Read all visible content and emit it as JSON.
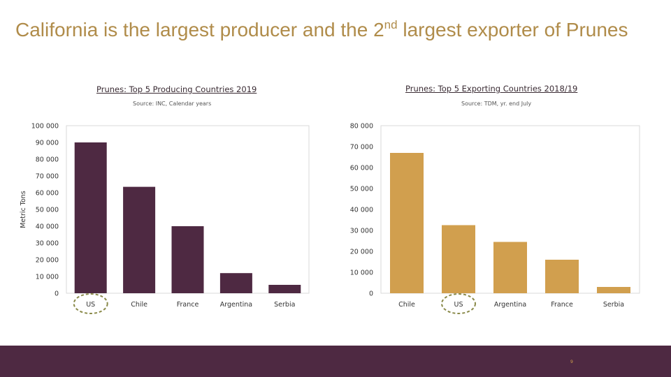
{
  "slide": {
    "title_main": "California is the largest producer and the 2",
    "title_sup": "nd",
    "title_rest": " largest exporter of Prunes",
    "page_number": "9"
  },
  "colors": {
    "title": "#B08C4A",
    "producing_bars": "#4E2942",
    "exporting_bars": "#D19F4E",
    "highlight_circle": "#8A8A4A",
    "footer": "#4E2942"
  },
  "chart_data": [
    {
      "type": "bar",
      "title": "Prunes: Top 5 Producing Countries 2019",
      "subtitle": "Source: INC, Calendar years",
      "categories": [
        "US",
        "Chile",
        "France",
        "Argentina",
        "Serbia"
      ],
      "values": [
        90000,
        63500,
        40000,
        12000,
        5000
      ],
      "ylabel": "Metric Tons",
      "xlabel": "",
      "ylim": [
        0,
        100000
      ],
      "yticks": [
        0,
        10000,
        20000,
        30000,
        40000,
        50000,
        60000,
        70000,
        80000,
        90000,
        100000
      ],
      "ytick_labels": [
        "0",
        "10 000",
        "20 000",
        "30 000",
        "40 000",
        "50 000",
        "60 000",
        "70 000",
        "80 000",
        "90 000",
        "100 000"
      ],
      "grid": false,
      "highlight_category": "US"
    },
    {
      "type": "bar",
      "title": "Prunes: Top 5 Exporting Countries 2018/19",
      "subtitle": "Source: TDM, yr. end July",
      "categories": [
        "Chile",
        "US",
        "Argentina",
        "France",
        "Serbia"
      ],
      "values": [
        67000,
        32500,
        24500,
        16000,
        3000
      ],
      "ylabel": "",
      "xlabel": "",
      "ylim": [
        0,
        80000
      ],
      "yticks": [
        0,
        10000,
        20000,
        30000,
        40000,
        50000,
        60000,
        70000,
        80000
      ],
      "ytick_labels": [
        "0",
        "10 000",
        "20 000",
        "30 000",
        "40 000",
        "50 000",
        "60 000",
        "70 000",
        "80 000"
      ],
      "grid": false,
      "highlight_category": "US"
    }
  ]
}
